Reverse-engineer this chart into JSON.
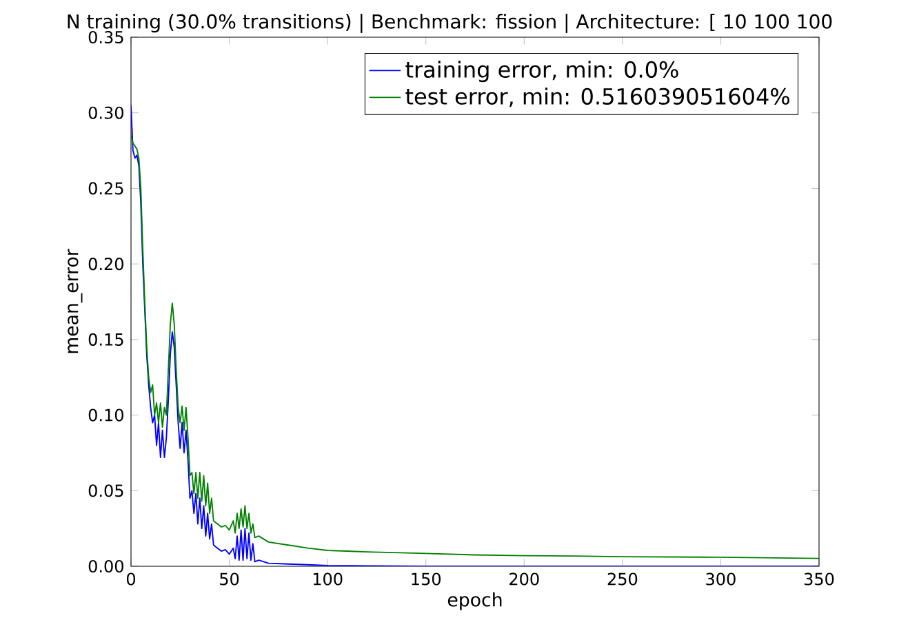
{
  "chart_data": {
    "type": "line",
    "title": "N training (30.0% transitions) | Benchmark: fission | Architecture: [ 10 100 100",
    "xlabel": "epoch",
    "ylabel": "mean_error",
    "xlim": [
      0,
      350
    ],
    "ylim": [
      0,
      0.35
    ],
    "xticks": [
      0,
      50,
      100,
      150,
      200,
      250,
      300,
      350
    ],
    "yticks": [
      {
        "value": 0,
        "label": "0.00"
      },
      {
        "value": 0.05,
        "label": "0.05"
      },
      {
        "value": 0.1,
        "label": "0.10"
      },
      {
        "value": 0.15,
        "label": "0.15"
      },
      {
        "value": 0.2,
        "label": "0.20"
      },
      {
        "value": 0.25,
        "label": "0.25"
      },
      {
        "value": 0.3,
        "label": "0.30"
      },
      {
        "value": 0.35,
        "label": "0.35"
      }
    ],
    "legend": "top right",
    "grid": false,
    "marker": "none",
    "line_style": "solid",
    "series": [
      {
        "name": "training error, min: 0.0%",
        "color": "#0000ff",
        "x": [
          0,
          1,
          2,
          3,
          4,
          5,
          6,
          7,
          8,
          9,
          10,
          11,
          12,
          13,
          14,
          15,
          16,
          17,
          18,
          19,
          20,
          21,
          22,
          23,
          24,
          25,
          26,
          27,
          28,
          29,
          30,
          31,
          32,
          33,
          34,
          35,
          36,
          37,
          38,
          39,
          40,
          41,
          42,
          44,
          46,
          48,
          50,
          52,
          53,
          54,
          55,
          56,
          57,
          58,
          59,
          60,
          61,
          62,
          63,
          65,
          70,
          80,
          90,
          100,
          120,
          150,
          200,
          250,
          300,
          350
        ],
        "values": [
          0.305,
          0.275,
          0.27,
          0.272,
          0.265,
          0.24,
          0.2,
          0.17,
          0.14,
          0.12,
          0.105,
          0.095,
          0.1,
          0.08,
          0.095,
          0.072,
          0.09,
          0.072,
          0.085,
          0.11,
          0.14,
          0.155,
          0.145,
          0.12,
          0.095,
          0.078,
          0.095,
          0.075,
          0.09,
          0.07,
          0.045,
          0.05,
          0.035,
          0.048,
          0.028,
          0.045,
          0.025,
          0.04,
          0.02,
          0.035,
          0.018,
          0.028,
          0.014,
          0.012,
          0.01,
          0.011,
          0.008,
          0.012,
          0.005,
          0.02,
          0.004,
          0.024,
          0.004,
          0.025,
          0.005,
          0.022,
          0.004,
          0.015,
          0.003,
          0.004,
          0.002,
          0.0015,
          0.001,
          0.0005,
          0.0002,
          0,
          0,
          0,
          0,
          0
        ]
      },
      {
        "name": "test error, min: 0.516039051604%",
        "color": "#008000",
        "x": [
          0,
          1,
          2,
          3,
          4,
          5,
          6,
          7,
          8,
          9,
          10,
          11,
          12,
          13,
          14,
          15,
          16,
          17,
          18,
          19,
          20,
          21,
          22,
          23,
          24,
          25,
          26,
          27,
          28,
          29,
          30,
          31,
          32,
          33,
          34,
          35,
          36,
          37,
          38,
          39,
          40,
          41,
          42,
          44,
          46,
          48,
          50,
          52,
          53,
          54,
          55,
          56,
          57,
          58,
          59,
          60,
          61,
          62,
          63,
          65,
          70,
          80,
          90,
          100,
          120,
          150,
          175,
          200,
          225,
          250,
          300,
          350
        ],
        "values": [
          0.285,
          0.28,
          0.278,
          0.276,
          0.27,
          0.25,
          0.21,
          0.175,
          0.145,
          0.125,
          0.115,
          0.12,
          0.1,
          0.108,
          0.095,
          0.108,
          0.092,
          0.105,
          0.1,
          0.13,
          0.16,
          0.174,
          0.16,
          0.13,
          0.105,
          0.095,
          0.106,
          0.09,
          0.105,
          0.085,
          0.06,
          0.062,
          0.048,
          0.062,
          0.045,
          0.062,
          0.043,
          0.06,
          0.04,
          0.055,
          0.035,
          0.045,
          0.03,
          0.028,
          0.026,
          0.027,
          0.024,
          0.03,
          0.022,
          0.035,
          0.025,
          0.038,
          0.026,
          0.04,
          0.025,
          0.035,
          0.022,
          0.028,
          0.019,
          0.02,
          0.016,
          0.014,
          0.012,
          0.0105,
          0.0095,
          0.0085,
          0.0075,
          0.007,
          0.0068,
          0.0063,
          0.006,
          0.00516
        ]
      }
    ]
  }
}
